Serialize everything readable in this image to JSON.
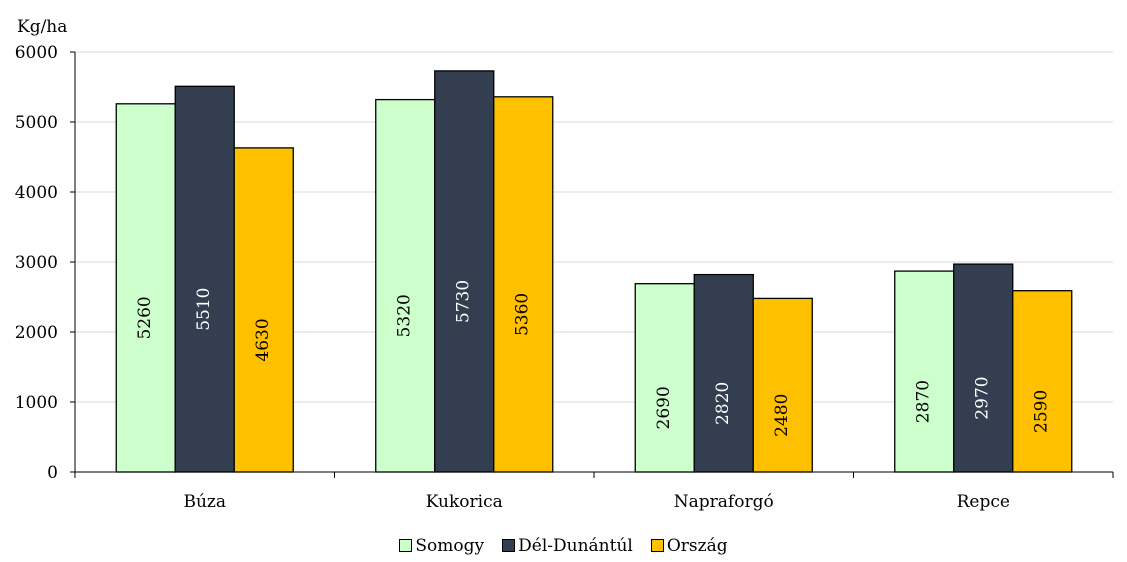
{
  "chart_data": {
    "type": "bar",
    "ylabel": "Kg/ha",
    "ylim": [
      0,
      6000
    ],
    "yticks": [
      0,
      1000,
      2000,
      3000,
      4000,
      5000,
      6000
    ],
    "grid": true,
    "legend_position": "bottom",
    "categories": [
      "Búza",
      "Kukorica",
      "Napraforgó",
      "Repce"
    ],
    "series": [
      {
        "name": "Somogy",
        "color": "#ccffcc",
        "values": [
          5260,
          5320,
          2690,
          2870
        ]
      },
      {
        "name": "Dél-Dunántúl",
        "color": "#333f50",
        "values": [
          5510,
          5730,
          2820,
          2970
        ]
      },
      {
        "name": "Ország",
        "color": "#ffc000",
        "values": [
          4630,
          5360,
          2480,
          2590
        ]
      }
    ]
  }
}
